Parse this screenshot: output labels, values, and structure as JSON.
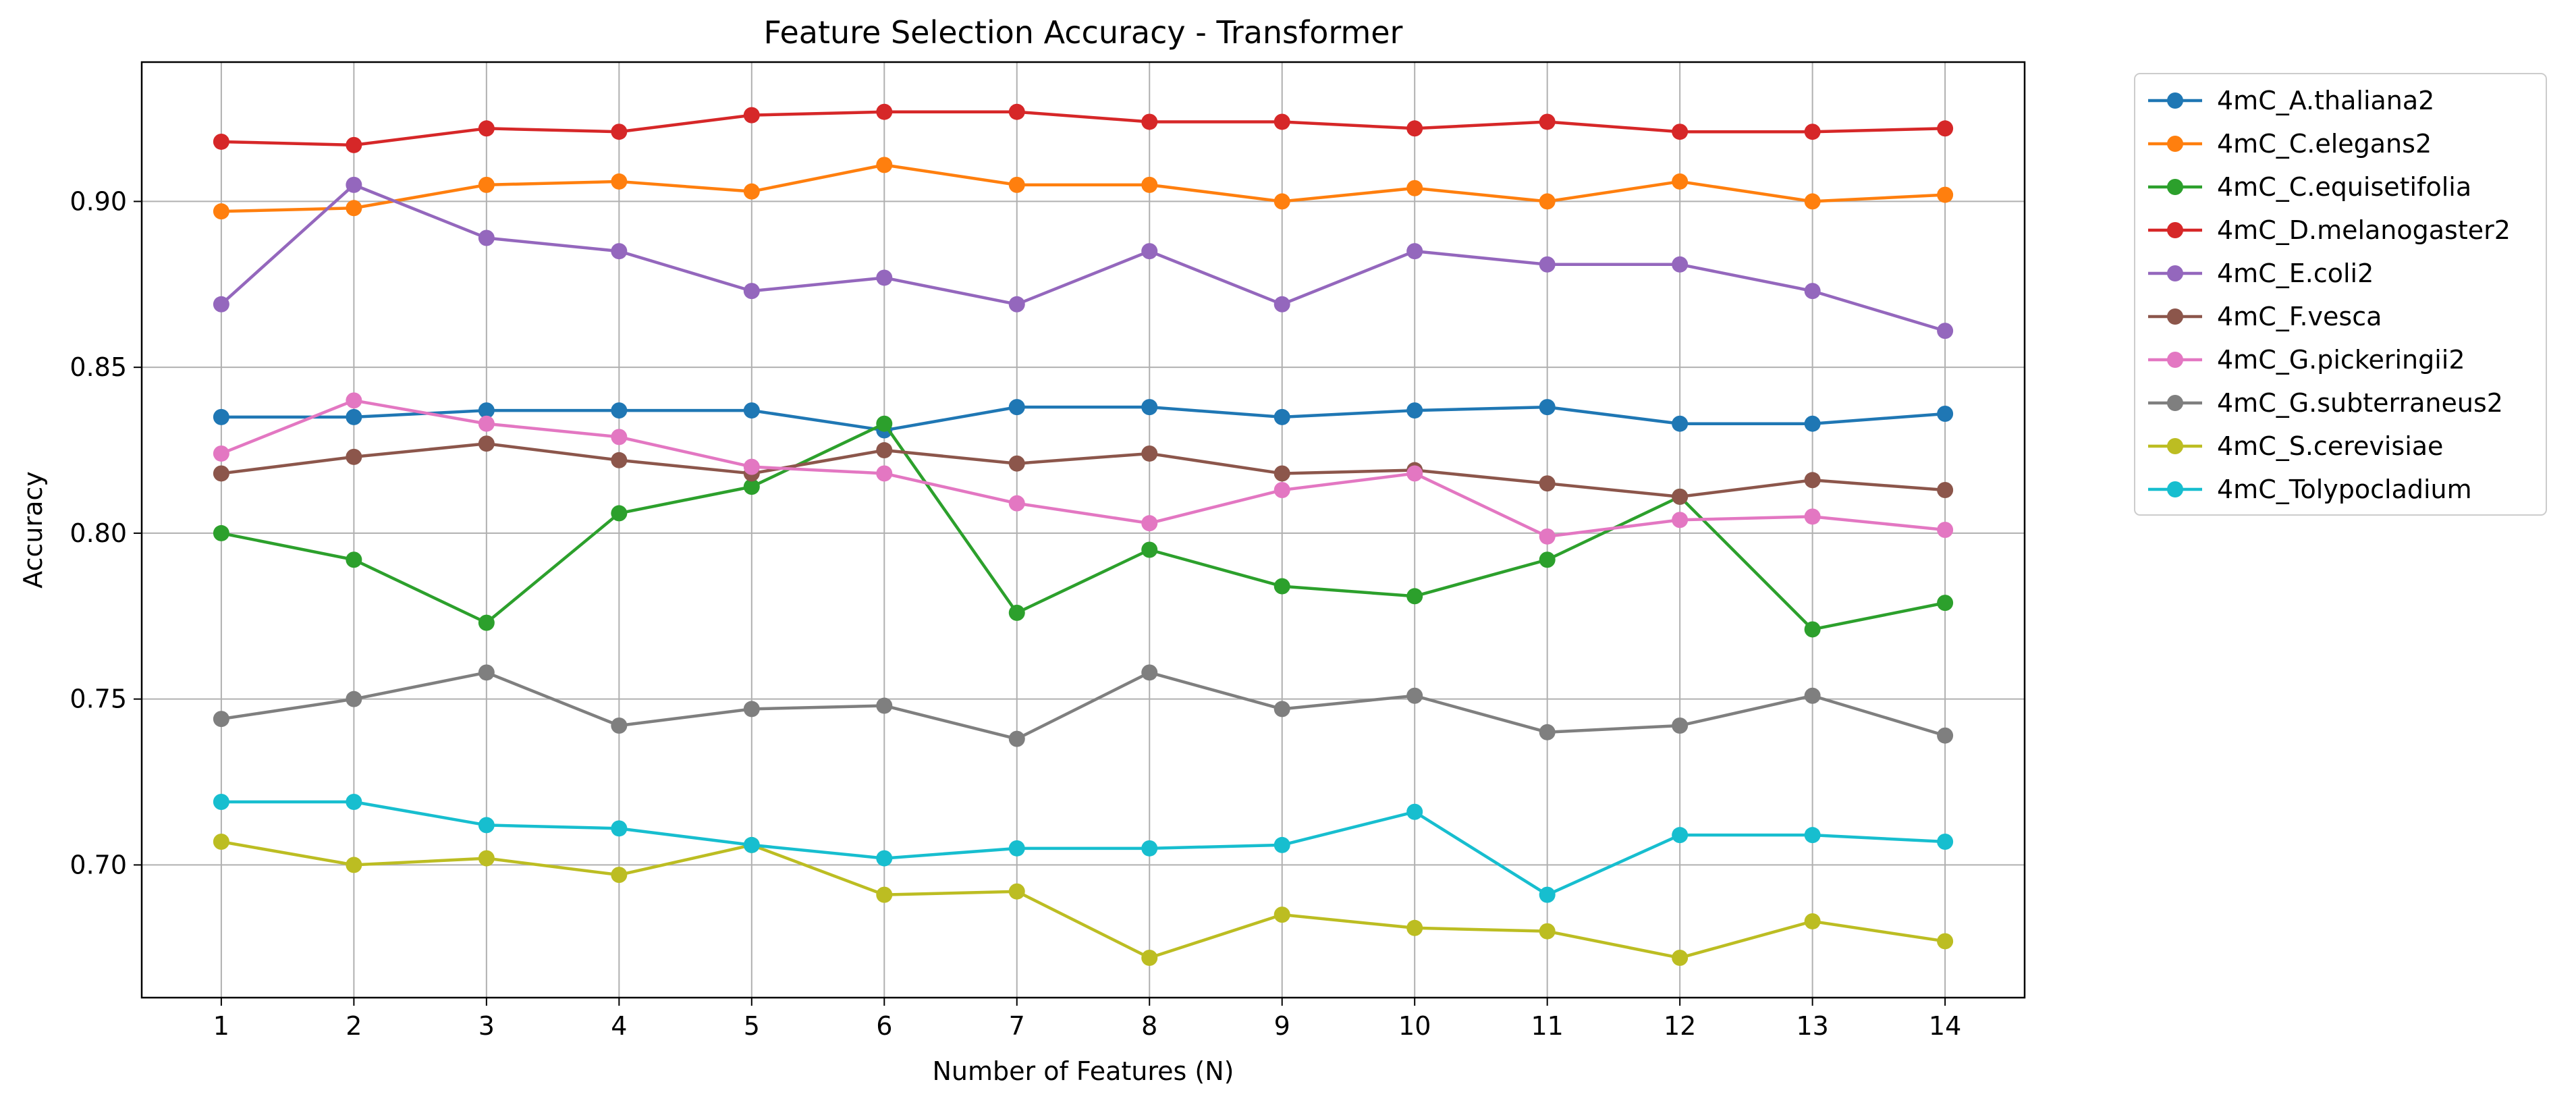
{
  "chart_data": {
    "type": "line",
    "title": "Feature Selection Accuracy - Transformer",
    "xlabel": "Number of Features (N)",
    "ylabel": "Accuracy",
    "x": [
      1,
      2,
      3,
      4,
      5,
      6,
      7,
      8,
      9,
      10,
      11,
      12,
      13,
      14
    ],
    "xlim": [
      0.4,
      14.6
    ],
    "ylim": [
      0.66,
      0.942
    ],
    "yticks": [
      0.7,
      0.75,
      0.8,
      0.85,
      0.9
    ],
    "ytick_labels": [
      "0.70",
      "0.75",
      "0.80",
      "0.85",
      "0.90"
    ],
    "xtick_labels": [
      "1",
      "2",
      "3",
      "4",
      "5",
      "6",
      "7",
      "8",
      "9",
      "10",
      "11",
      "12",
      "13",
      "14"
    ],
    "grid": true,
    "legend_position": "outside-right",
    "series": [
      {
        "name": "4mC_A.thaliana2",
        "color": "#1f77b4",
        "values": [
          0.835,
          0.835,
          0.837,
          0.837,
          0.837,
          0.831,
          0.838,
          0.838,
          0.835,
          0.837,
          0.838,
          0.833,
          0.833,
          0.836
        ]
      },
      {
        "name": "4mC_C.elegans2",
        "color": "#ff7f0e",
        "values": [
          0.897,
          0.898,
          0.905,
          0.906,
          0.903,
          0.911,
          0.905,
          0.905,
          0.9,
          0.904,
          0.9,
          0.906,
          0.9,
          0.902
        ]
      },
      {
        "name": "4mC_C.equisetifolia",
        "color": "#2ca02c",
        "values": [
          0.8,
          0.792,
          0.773,
          0.806,
          0.814,
          0.833,
          0.776,
          0.795,
          0.784,
          0.781,
          0.792,
          0.811,
          0.771,
          0.779
        ]
      },
      {
        "name": "4mC_D.melanogaster2",
        "color": "#d62728",
        "values": [
          0.918,
          0.917,
          0.922,
          0.921,
          0.926,
          0.927,
          0.927,
          0.924,
          0.924,
          0.922,
          0.924,
          0.921,
          0.921,
          0.922
        ]
      },
      {
        "name": "4mC_E.coli2",
        "color": "#9467bd",
        "values": [
          0.869,
          0.905,
          0.889,
          0.885,
          0.873,
          0.877,
          0.869,
          0.885,
          0.869,
          0.885,
          0.881,
          0.881,
          0.873,
          0.861
        ]
      },
      {
        "name": "4mC_F.vesca",
        "color": "#8c564b",
        "values": [
          0.818,
          0.823,
          0.827,
          0.822,
          0.818,
          0.825,
          0.821,
          0.824,
          0.818,
          0.819,
          0.815,
          0.811,
          0.816,
          0.813
        ]
      },
      {
        "name": "4mC_G.pickeringii2",
        "color": "#e377c2",
        "values": [
          0.824,
          0.84,
          0.833,
          0.829,
          0.82,
          0.818,
          0.809,
          0.803,
          0.813,
          0.818,
          0.799,
          0.804,
          0.805,
          0.801
        ]
      },
      {
        "name": "4mC_G.subterraneus2",
        "color": "#7f7f7f",
        "values": [
          0.744,
          0.75,
          0.758,
          0.742,
          0.747,
          0.748,
          0.738,
          0.758,
          0.747,
          0.751,
          0.74,
          0.742,
          0.751,
          0.739
        ]
      },
      {
        "name": "4mC_S.cerevisiae",
        "color": "#bcbd22",
        "values": [
          0.707,
          0.7,
          0.702,
          0.697,
          0.706,
          0.691,
          0.692,
          0.672,
          0.685,
          0.681,
          0.68,
          0.672,
          0.683,
          0.677
        ]
      },
      {
        "name": "4mC_Tolypocladium",
        "color": "#17becf",
        "values": [
          0.719,
          0.719,
          0.712,
          0.711,
          0.706,
          0.702,
          0.705,
          0.705,
          0.706,
          0.716,
          0.691,
          0.709,
          0.709,
          0.707
        ]
      }
    ]
  }
}
